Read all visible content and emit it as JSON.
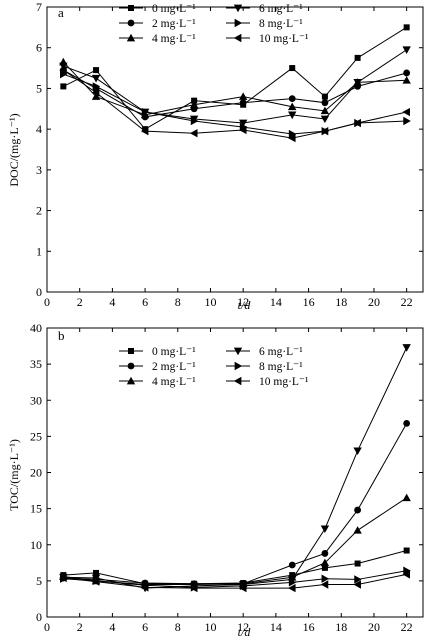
{
  "chart_data": [
    {
      "type": "line",
      "panel_label": "a",
      "xlabel": "t/d",
      "ylabel": "DOC/(mg·L⁻¹)",
      "xlim": [
        0,
        23
      ],
      "ylim": [
        0,
        7
      ],
      "x_ticks": [
        "0",
        "2",
        "4",
        "6",
        "8",
        "10",
        "12",
        "14",
        "16",
        "18",
        "20",
        "22"
      ],
      "y_ticks": [
        "0",
        "1",
        "2",
        "3",
        "4",
        "5",
        "6",
        "7"
      ],
      "grid": false,
      "legend_placement": "top",
      "x": [
        1,
        3,
        6,
        9,
        12,
        15,
        17,
        19,
        22
      ],
      "series": [
        {
          "name": "0 mg·L⁻¹",
          "marker": "square",
          "values": [
            5.05,
            5.45,
            4.0,
            4.7,
            4.6,
            5.5,
            4.8,
            5.75,
            6.5
          ]
        },
        {
          "name": "2 mg·L⁻¹",
          "marker": "circle",
          "values": [
            5.45,
            5.0,
            4.3,
            4.5,
            4.65,
            4.75,
            4.65,
            5.05,
            5.38
          ]
        },
        {
          "name": "4 mg·L⁻¹",
          "marker": "triangle-up",
          "values": [
            5.65,
            4.8,
            4.35,
            4.6,
            4.8,
            4.55,
            4.45,
            5.15,
            5.2
          ]
        },
        {
          "name": "6 mg·L⁻¹",
          "marker": "triangle-down",
          "values": [
            5.55,
            5.25,
            4.42,
            4.25,
            4.15,
            4.35,
            4.25,
            5.15,
            5.95
          ]
        },
        {
          "name": "8 mg·L⁻¹",
          "marker": "triangle-right",
          "values": [
            5.35,
            5.05,
            4.42,
            4.2,
            4.05,
            3.88,
            3.95,
            4.15,
            4.2
          ]
        },
        {
          "name": "10 mg·L⁻¹",
          "marker": "triangle-left",
          "values": [
            5.45,
            4.9,
            3.95,
            3.9,
            3.98,
            3.78,
            3.95,
            4.15,
            4.42
          ]
        }
      ]
    },
    {
      "type": "line",
      "panel_label": "b",
      "xlabel": "t/d",
      "ylabel": "TOC/(mg·L⁻¹)",
      "xlim": [
        0,
        23
      ],
      "ylim": [
        0,
        40
      ],
      "x_ticks": [
        "0",
        "2",
        "4",
        "6",
        "8",
        "10",
        "12",
        "14",
        "16",
        "18",
        "20",
        "22"
      ],
      "y_ticks": [
        "0",
        "5",
        "10",
        "15",
        "20",
        "25",
        "30",
        "35",
        "40"
      ],
      "grid": false,
      "legend_placement": "top",
      "x": [
        1,
        3,
        6,
        9,
        12,
        15,
        17,
        19,
        22
      ],
      "series": [
        {
          "name": "0 mg·L⁻¹",
          "marker": "square",
          "values": [
            5.8,
            6.1,
            4.6,
            4.6,
            4.7,
            5.8,
            6.8,
            7.4,
            9.2
          ]
        },
        {
          "name": "2 mg·L⁻¹",
          "marker": "circle",
          "values": [
            5.4,
            5.2,
            4.7,
            4.6,
            4.6,
            7.2,
            8.8,
            14.8,
            26.8
          ]
        },
        {
          "name": "4 mg·L⁻¹",
          "marker": "triangle-up",
          "values": [
            5.6,
            5.0,
            4.5,
            4.5,
            4.6,
            5.5,
            7.5,
            12.0,
            16.5
          ]
        },
        {
          "name": "6 mg·L⁻¹",
          "marker": "triangle-down",
          "values": [
            5.5,
            5.4,
            4.0,
            4.3,
            4.5,
            5.2,
            12.2,
            23.0,
            37.3
          ]
        },
        {
          "name": "8 mg·L⁻¹",
          "marker": "triangle-right",
          "values": [
            5.3,
            5.0,
            4.4,
            4.1,
            4.3,
            4.8,
            5.3,
            5.2,
            6.4
          ]
        },
        {
          "name": "10 mg·L⁻¹",
          "marker": "triangle-left",
          "values": [
            5.4,
            4.9,
            4.1,
            4.0,
            4.0,
            4.0,
            4.5,
            4.5,
            5.9
          ]
        }
      ]
    }
  ]
}
